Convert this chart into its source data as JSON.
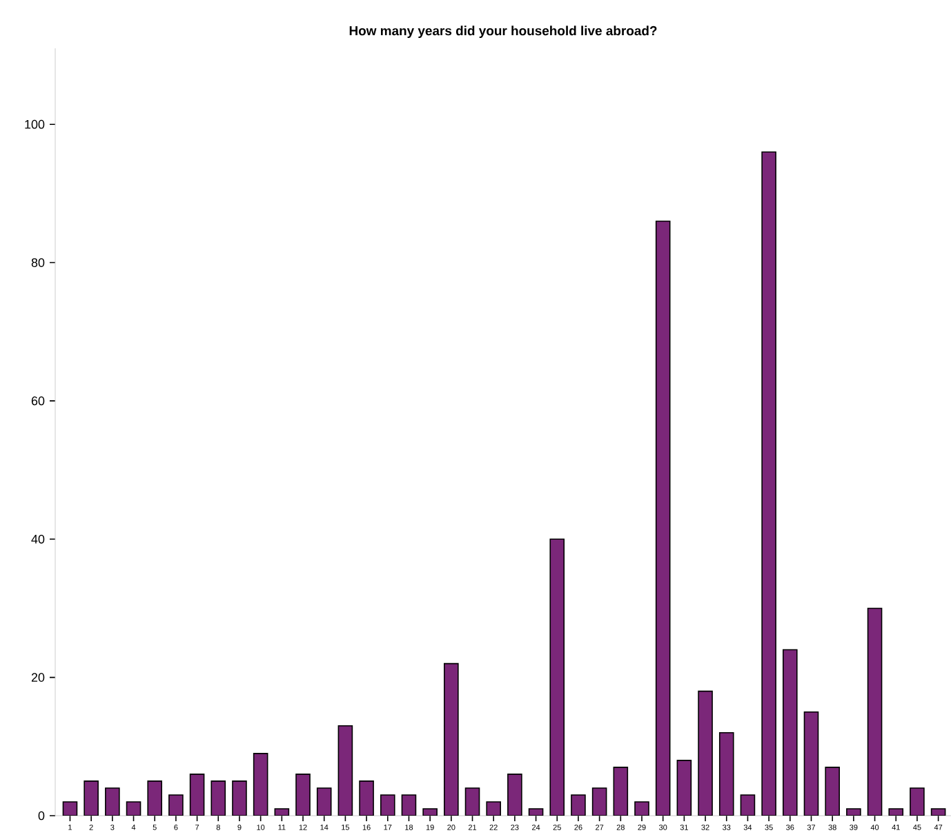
{
  "chart_data": {
    "type": "bar",
    "title": "How many years did your household live abroad?",
    "categories": [
      "1",
      "2",
      "3",
      "4",
      "5",
      "6",
      "7",
      "8",
      "9",
      "10",
      "11",
      "12",
      "14",
      "15",
      "16",
      "17",
      "18",
      "19",
      "20",
      "21",
      "22",
      "23",
      "24",
      "25",
      "26",
      "27",
      "28",
      "29",
      "30",
      "31",
      "32",
      "33",
      "34",
      "35",
      "36",
      "37",
      "38",
      "39",
      "40",
      "41",
      "45",
      "47"
    ],
    "values": [
      2,
      5,
      4,
      2,
      5,
      3,
      6,
      5,
      5,
      9,
      1,
      6,
      4,
      13,
      5,
      3,
      3,
      1,
      22,
      4,
      2,
      6,
      1,
      40,
      3,
      4,
      7,
      2,
      86,
      8,
      18,
      12,
      3,
      96,
      24,
      15,
      7,
      1,
      30,
      1,
      4,
      1
    ],
    "color": "#7b2779",
    "ylim": [
      0,
      111
    ],
    "yticks": [
      0,
      20,
      40,
      60,
      80,
      100
    ],
    "grid": false
  }
}
